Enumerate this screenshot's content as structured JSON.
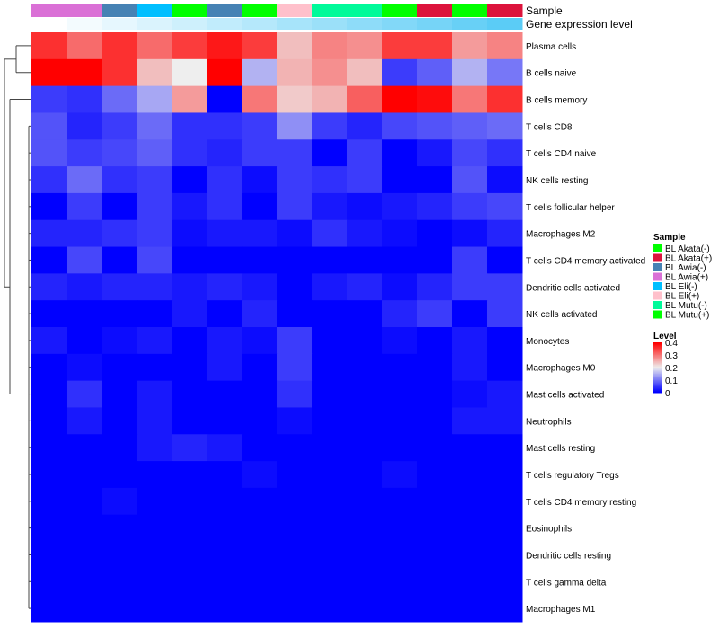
{
  "chart_data": {
    "type": "heatmap",
    "annotation_labels": [
      "Sample",
      "Gene expression level"
    ],
    "columns_sample": [
      "BL Awia(+)",
      "BL Awia(+)",
      "BL Awia(-)",
      "BL Eli(-)",
      "BL Akata(-)",
      "BL Awia(-)",
      "BL Mutu(+)",
      "BL Eli(+)",
      "BL Mutu(-)",
      "BL Mutu(-)",
      "BL Akata(-)",
      "BL Akata(+)",
      "BL Mutu(+)",
      "BL Akata(+)"
    ],
    "gene_expression_level": [
      0.0,
      0.07,
      0.14,
      0.21,
      0.28,
      0.35,
      0.42,
      0.5,
      0.57,
      0.64,
      0.71,
      0.78,
      0.86,
      0.93
    ],
    "gene_expression_colors": [
      "#ffffff",
      "#4fc8f5"
    ],
    "rows": [
      "Plasma cells",
      "B cells naive",
      "B cells memory",
      "T cells CD8",
      "T cells CD4 naive",
      "NK cells resting",
      "T cells follicular helper",
      "Macrophages M2",
      "T cells CD4 memory activated",
      "Dendritic cells activated",
      "NK cells activated",
      "Monocytes",
      "Macrophages M0",
      "Mast cells activated",
      "Neutrophils",
      "Mast cells resting",
      "T cells regulatory  Tregs",
      "T cells CD4 memory resting",
      "Eosinophils",
      "Dendritic cells resting",
      "T cells gamma delta",
      "Macrophages M1"
    ],
    "values": [
      [
        0.36,
        0.31,
        0.36,
        0.31,
        0.35,
        0.38,
        0.35,
        0.24,
        0.29,
        0.28,
        0.35,
        0.35,
        0.27,
        0.29
      ],
      [
        0.4,
        0.4,
        0.36,
        0.24,
        0.2,
        0.4,
        0.15,
        0.25,
        0.28,
        0.24,
        0.05,
        0.08,
        0.15,
        0.1
      ],
      [
        0.05,
        0.04,
        0.09,
        0.14,
        0.27,
        0.0,
        0.3,
        0.23,
        0.25,
        0.32,
        0.4,
        0.39,
        0.3,
        0.36
      ],
      [
        0.07,
        0.03,
        0.05,
        0.09,
        0.04,
        0.04,
        0.05,
        0.12,
        0.05,
        0.03,
        0.06,
        0.07,
        0.08,
        0.09
      ],
      [
        0.07,
        0.05,
        0.06,
        0.08,
        0.04,
        0.03,
        0.05,
        0.05,
        0.0,
        0.05,
        0.0,
        0.02,
        0.06,
        0.04
      ],
      [
        0.04,
        0.09,
        0.04,
        0.05,
        0.0,
        0.04,
        0.01,
        0.05,
        0.04,
        0.05,
        0.0,
        0.0,
        0.07,
        0.01
      ],
      [
        0.0,
        0.05,
        0.0,
        0.05,
        0.02,
        0.04,
        0.0,
        0.05,
        0.02,
        0.01,
        0.02,
        0.03,
        0.05,
        0.06
      ],
      [
        0.03,
        0.03,
        0.04,
        0.05,
        0.01,
        0.02,
        0.02,
        0.01,
        0.04,
        0.02,
        0.01,
        0.0,
        0.01,
        0.03
      ],
      [
        0.0,
        0.06,
        0.0,
        0.06,
        0.0,
        0.0,
        0.0,
        0.0,
        0.0,
        0.0,
        0.0,
        0.0,
        0.05,
        0.0
      ],
      [
        0.03,
        0.02,
        0.03,
        0.03,
        0.02,
        0.03,
        0.02,
        0.0,
        0.02,
        0.03,
        0.01,
        0.03,
        0.05,
        0.05
      ],
      [
        0.0,
        0.0,
        0.0,
        0.0,
        0.02,
        0.0,
        0.03,
        0.0,
        0.0,
        0.0,
        0.03,
        0.05,
        0.0,
        0.05
      ],
      [
        0.02,
        0.0,
        0.01,
        0.02,
        0.0,
        0.02,
        0.01,
        0.05,
        0.0,
        0.0,
        0.01,
        0.0,
        0.02,
        0.0
      ],
      [
        0.0,
        0.01,
        0.0,
        0.0,
        0.0,
        0.02,
        0.0,
        0.05,
        0.0,
        0.0,
        0.0,
        0.0,
        0.02,
        0.0
      ],
      [
        0.0,
        0.04,
        0.0,
        0.02,
        0.0,
        0.0,
        0.0,
        0.04,
        0.0,
        0.0,
        0.0,
        0.0,
        0.01,
        0.02
      ],
      [
        0.0,
        0.02,
        0.0,
        0.02,
        0.0,
        0.0,
        0.0,
        0.01,
        0.0,
        0.0,
        0.0,
        0.0,
        0.02,
        0.02
      ],
      [
        0.0,
        0.0,
        0.0,
        0.02,
        0.03,
        0.02,
        0.0,
        0.0,
        0.0,
        0.0,
        0.0,
        0.0,
        0.0,
        0.0
      ],
      [
        0.0,
        0.0,
        0.0,
        0.0,
        0.0,
        0.0,
        0.01,
        0.0,
        0.0,
        0.0,
        0.01,
        0.0,
        0.0,
        0.0
      ],
      [
        0.0,
        0.0,
        0.01,
        0.0,
        0.0,
        0.0,
        0.0,
        0.0,
        0.0,
        0.0,
        0.0,
        0.0,
        0.0,
        0.0
      ],
      [
        0,
        0,
        0,
        0,
        0,
        0,
        0,
        0,
        0,
        0,
        0,
        0,
        0,
        0
      ],
      [
        0,
        0,
        0,
        0,
        0,
        0,
        0,
        0,
        0,
        0,
        0,
        0,
        0,
        0
      ],
      [
        0,
        0,
        0,
        0,
        0,
        0,
        0,
        0,
        0,
        0,
        0,
        0,
        0,
        0
      ],
      [
        0,
        0,
        0,
        0,
        0,
        0,
        0,
        0,
        0,
        0,
        0,
        0,
        0,
        0
      ]
    ],
    "color_scale": {
      "min": 0,
      "mid": 0.2,
      "max": 0.4,
      "low": "#0000ff",
      "midcolor": "#eeeeee",
      "high": "#ff0000"
    },
    "legend_sample": {
      "title": "Sample",
      "items": [
        {
          "label": "BL Akata(-)",
          "color": "#00ff00"
        },
        {
          "label": "BL Akata(+)",
          "color": "#dc143c"
        },
        {
          "label": "BL Awia(-)",
          "color": "#4682b4"
        },
        {
          "label": "BL Awia(+)",
          "color": "#da70d6"
        },
        {
          "label": "BL Eli(-)",
          "color": "#00bfff"
        },
        {
          "label": "BL Eli(+)",
          "color": "#ffc0cb"
        },
        {
          "label": "BL Mutu(-)",
          "color": "#00fa9a"
        },
        {
          "label": "BL Mutu(+)",
          "color": "#00ff00"
        }
      ]
    },
    "legend_level": {
      "title": "Level",
      "ticks": [
        "0.4",
        "0.3",
        "0.2",
        "0.1",
        "0"
      ]
    }
  }
}
